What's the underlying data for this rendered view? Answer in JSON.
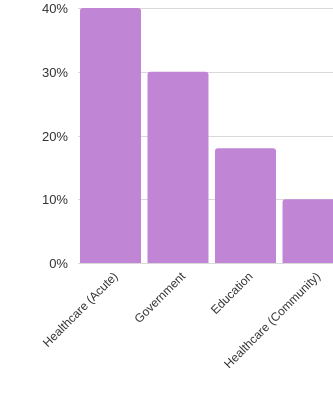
{
  "chart_data": {
    "type": "bar",
    "title": "",
    "xlabel": "",
    "ylabel": "",
    "categories": [
      "Healthcare (Acute)",
      "Government",
      "Education",
      "Healthcare (Community)"
    ],
    "values": [
      40,
      30,
      18,
      10
    ],
    "ylim": [
      0,
      40
    ],
    "yticks": [
      0,
      10,
      20,
      30,
      40
    ],
    "ytick_labels": [
      "0%",
      "10%",
      "20%",
      "30%",
      "40%"
    ],
    "grid": true,
    "bar_color": "#c185d5",
    "grid_color": "#d9d9d9",
    "text_color": "#333333"
  }
}
